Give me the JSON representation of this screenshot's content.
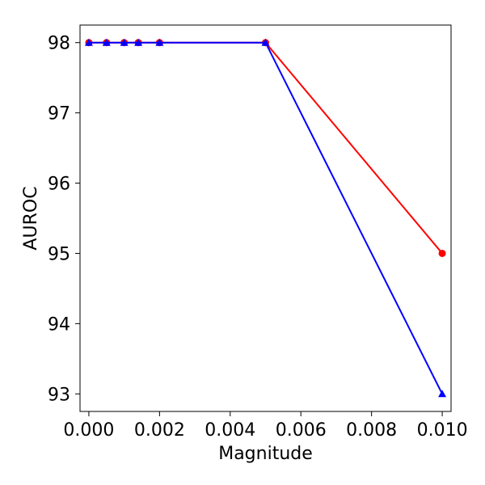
{
  "chart_data": {
    "type": "line",
    "title": "",
    "xlabel": "Magnitude",
    "ylabel": "AUROC",
    "xlim": [
      -0.00025,
      0.01025
    ],
    "ylim": [
      92.75,
      98.25
    ],
    "x_ticks": [
      0.0,
      0.002,
      0.004,
      0.006,
      0.008,
      0.01
    ],
    "x_tick_labels": [
      "0.000",
      "0.002",
      "0.004",
      "0.006",
      "0.008",
      "0.010"
    ],
    "y_ticks": [
      93,
      94,
      95,
      96,
      97,
      98
    ],
    "y_tick_labels": [
      "93",
      "94",
      "95",
      "96",
      "97",
      "98"
    ],
    "grid": false,
    "legend": false,
    "series": [
      {
        "color": "#ff0000",
        "marker": "circle",
        "x": [
          0.0,
          0.0005,
          0.001,
          0.0014,
          0.002,
          0.005,
          0.01
        ],
        "y": [
          98,
          98,
          98,
          98,
          98,
          98,
          95
        ]
      },
      {
        "color": "#0000ff",
        "marker": "triangle",
        "x": [
          0.0,
          0.0005,
          0.001,
          0.0014,
          0.002,
          0.005,
          0.01
        ],
        "y": [
          98,
          98,
          98,
          98,
          98,
          98,
          93
        ]
      }
    ]
  }
}
